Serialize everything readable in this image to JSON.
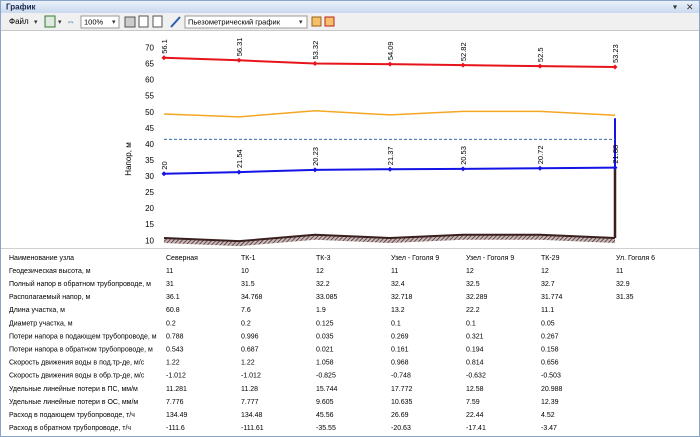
{
  "window": {
    "title": "График"
  },
  "toolbar": {
    "file_menu": "Файл",
    "zoom": "100%",
    "chart_select": "Пьезометрический график"
  },
  "chart_data": {
    "type": "line",
    "y_label": "Напор, м",
    "ylim": [
      8.5,
      72
    ],
    "yticks": [
      10,
      15,
      20,
      25,
      30,
      35,
      40,
      45,
      50,
      55,
      60,
      65,
      70
    ],
    "reference_line": 41.7,
    "series": [
      {
        "color": "#e8141b",
        "values": [
          67.1,
          66.3,
          65.3,
          65.1,
          64.8,
          64.5,
          64.2
        ],
        "annotations": [
          56.1,
          56.31,
          53.32,
          54.09,
          52.82,
          52.5,
          53.23
        ]
      },
      {
        "color": "#f5a623",
        "values": [
          49.6,
          48.7,
          50.6,
          49.3,
          50.4,
          50.4,
          49.2
        ]
      },
      {
        "color": "#1414e6",
        "values": [
          31,
          31.5,
          32.2,
          32.4,
          32.5,
          32.7,
          32.9
        ],
        "annotations": [
          20,
          21.54,
          20.23,
          21.37,
          20.53,
          20.72,
          21.88
        ]
      },
      {
        "color": "#3a1f1f",
        "values": [
          11,
          10,
          12,
          11,
          12,
          12,
          11
        ]
      }
    ]
  },
  "table": {
    "header": [
      "Наименование узла",
      "Северная",
      "ТК-1",
      "ТК-3",
      "Узел - Гоголя 9",
      "Узел - Гоголя 9",
      "ТК-29",
      "Ул. Гоголя 6"
    ],
    "rows": [
      [
        "Геодезическая высота, м",
        11,
        10,
        12,
        11,
        12,
        12,
        11
      ],
      [
        "Полный напор в обратном трубопроводе, м",
        31,
        31.5,
        32.2,
        32.4,
        32.5,
        32.7,
        32.9
      ],
      [
        "Располагаемый напор, м",
        36.1,
        34.768,
        33.085,
        32.718,
        32.289,
        31.774,
        31.35
      ],
      [
        "Длина участка, м",
        60.8,
        7.6,
        1.9,
        13.2,
        22.2,
        11.1,
        null
      ],
      [
        "Диаметр участка, м",
        0.2,
        0.2,
        0.125,
        0.1,
        0.1,
        0.05,
        null
      ],
      [
        "Потери напора в подающем трубопроводе, м",
        0.788,
        0.996,
        0.035,
        0.269,
        0.321,
        0.267,
        null
      ],
      [
        "Потери напора в обратном трубопроводе, м",
        0.543,
        0.687,
        0.021,
        0.161,
        0.194,
        0.158,
        null
      ],
      [
        "Скорость движения воды в под.тр-де, м/с",
        1.22,
        1.22,
        1.058,
        0.968,
        0.814,
        0.656,
        null
      ],
      [
        "Скорость движения воды в обр.тр-де, м/с",
        -1.012,
        -1.012,
        -0.825,
        -0.748,
        -0.632,
        -0.503,
        null
      ],
      [
        "Удельные линейные потери в ПС, мм/м",
        11.281,
        11.28,
        15.744,
        17.772,
        12.58,
        20.988,
        null
      ],
      [
        "Удельные линейные потери в ОС, мм/м",
        7.776,
        7.777,
        9.605,
        10.635,
        7.59,
        12.39,
        null
      ],
      [
        "Расход в подающем трубопроводе, т/ч",
        134.49,
        134.48,
        45.56,
        26.69,
        22.44,
        4.52,
        null
      ],
      [
        "Расход в обратном трубопроводе, т/ч",
        -111.6,
        -111.61,
        -35.55,
        -20.63,
        -17.41,
        -3.47,
        null
      ]
    ]
  }
}
